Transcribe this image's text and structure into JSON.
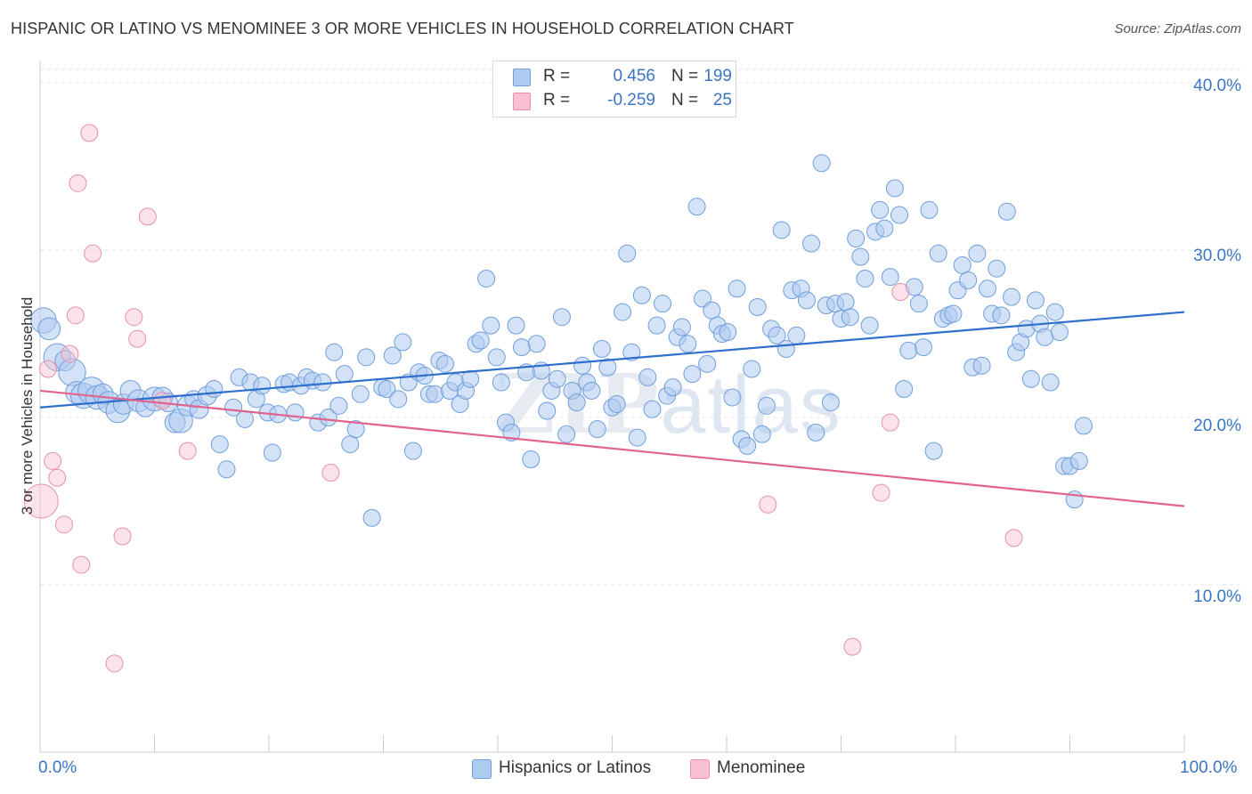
{
  "title": "HISPANIC OR LATINO VS MENOMINEE 3 OR MORE VEHICLES IN HOUSEHOLD CORRELATION CHART",
  "source": "Source: ZipAtlas.com",
  "watermark": {
    "zip": "ZIP",
    "atlas": "atlas"
  },
  "legend": {
    "rows": [
      {
        "r_label": "R =",
        "r_value": "0.456",
        "n_label": "N =",
        "n_value": "199",
        "color": "#aecbf0",
        "border": "#6f9fdc"
      },
      {
        "r_label": "R =",
        "r_value": "-0.259",
        "n_label": "N =",
        "n_value": "25",
        "color": "#f8c0d0",
        "border": "#e791ab"
      }
    ]
  },
  "bottom_legend": [
    {
      "label": "Hispanics or Latinos",
      "color": "#aecbf0",
      "border": "#6f9fdc"
    },
    {
      "label": "Menominee",
      "color": "#f8c0d0",
      "border": "#e791ab"
    }
  ],
  "axes": {
    "ylabel": "3 or more Vehicles in Household",
    "x_left_label": "0.0%",
    "x_right_label": "100.0%",
    "y_tick_labels": [
      "10.0%",
      "20.0%",
      "30.0%",
      "40.0%"
    ]
  },
  "chart_data": {
    "type": "scatter",
    "x_range": [
      0,
      100
    ],
    "y_range": [
      0,
      40.8
    ],
    "y_ticks": [
      10,
      20,
      30,
      40
    ],
    "grid": true,
    "legend_position": "top-center",
    "series": [
      {
        "name": "Hispanics or Latinos",
        "color": "#aecbf0",
        "stroke": "#6f9fdc",
        "line_color": "#2f6fcc",
        "trend": {
          "x": [
            0,
            100
          ],
          "y": [
            20.6,
            26.3
          ]
        },
        "points": [
          [
            0.3,
            25.8,
            1.5
          ],
          [
            0.8,
            25.3,
            1.3
          ],
          [
            1.5,
            23.6,
            1.6
          ],
          [
            2.2,
            23.4,
            1.2
          ],
          [
            2.8,
            22.7,
            1.6
          ],
          [
            3.2,
            21.5,
            1.3
          ],
          [
            3.8,
            21.3,
            1.5
          ],
          [
            4.5,
            21.6,
            1.6
          ],
          [
            5.0,
            21.2,
            1.4
          ],
          [
            5.5,
            21.4,
            1.2
          ],
          [
            6.0,
            20.9,
            1.3
          ],
          [
            6.8,
            20.4,
            1.4
          ],
          [
            7.3,
            20.8,
            1.2
          ],
          [
            7.9,
            21.6,
            1.2
          ],
          [
            8.6,
            21.0,
            1.3
          ],
          [
            9.2,
            20.6,
            1.1
          ],
          [
            10.0,
            21.1,
            1.4
          ],
          [
            10.7,
            21.2,
            1.2
          ],
          [
            11.2,
            20.9,
            1.1
          ],
          [
            11.8,
            19.7,
            1.2
          ],
          [
            12.3,
            19.8,
            1.4
          ],
          [
            12.9,
            20.7,
            1.2
          ],
          [
            13.4,
            21.1,
            1.0
          ],
          [
            13.9,
            20.5,
            1.1
          ],
          [
            14.6,
            21.3,
            1.1
          ],
          [
            15.2,
            21.7,
            1.0
          ],
          [
            15.7,
            18.4,
            1.0
          ],
          [
            16.3,
            16.9,
            1.0
          ],
          [
            16.9,
            20.6,
            1.0
          ],
          [
            17.4,
            22.4,
            1.0
          ],
          [
            17.9,
            19.9,
            1.0
          ],
          [
            18.4,
            22.1,
            1.0
          ],
          [
            18.9,
            21.1,
            1.0
          ],
          [
            19.4,
            21.9,
            1.0
          ],
          [
            19.9,
            20.3,
            1.0
          ],
          [
            20.3,
            17.9,
            1.0
          ],
          [
            20.8,
            20.2,
            1.0
          ],
          [
            21.3,
            22.0,
            1.0
          ],
          [
            21.8,
            22.1,
            1.0
          ],
          [
            22.3,
            20.3,
            1.0
          ],
          [
            22.8,
            21.9,
            1.0
          ],
          [
            23.3,
            22.4,
            1.0
          ],
          [
            23.8,
            22.2,
            1.0
          ],
          [
            24.3,
            19.7,
            1.0
          ],
          [
            24.7,
            22.1,
            1.0
          ],
          [
            25.2,
            20.0,
            1.0
          ],
          [
            25.7,
            23.9,
            1.0
          ],
          [
            26.1,
            20.7,
            1.0
          ],
          [
            26.6,
            22.6,
            1.0
          ],
          [
            27.1,
            18.4,
            1.0
          ],
          [
            27.6,
            19.3,
            1.0
          ],
          [
            28.0,
            21.4,
            1.0
          ],
          [
            28.5,
            23.6,
            1.0
          ],
          [
            29.0,
            14.0,
            1.0
          ],
          [
            29.9,
            21.8,
            1.0
          ],
          [
            30.3,
            21.7,
            1.0
          ],
          [
            30.8,
            23.7,
            1.0
          ],
          [
            31.3,
            21.1,
            1.0
          ],
          [
            31.7,
            24.5,
            1.0
          ],
          [
            32.2,
            22.1,
            1.0
          ],
          [
            32.6,
            18.0,
            1.0
          ],
          [
            33.1,
            22.7,
            1.0
          ],
          [
            33.6,
            22.5,
            1.0
          ],
          [
            34.0,
            21.4,
            1.0
          ],
          [
            34.5,
            21.4,
            1.0
          ],
          [
            34.9,
            23.4,
            1.0
          ],
          [
            35.4,
            23.2,
            1.0
          ],
          [
            35.8,
            21.6,
            1.0
          ],
          [
            36.3,
            22.1,
            1.0
          ],
          [
            36.7,
            20.8,
            1.0
          ],
          [
            37.2,
            21.6,
            1.0
          ],
          [
            37.6,
            22.3,
            1.0
          ],
          [
            38.1,
            24.4,
            1.0
          ],
          [
            38.5,
            24.6,
            1.0
          ],
          [
            39.0,
            28.3,
            1.0
          ],
          [
            39.4,
            25.5,
            1.0
          ],
          [
            39.9,
            23.6,
            1.0
          ],
          [
            40.3,
            22.1,
            1.0
          ],
          [
            40.7,
            19.7,
            1.0
          ],
          [
            41.2,
            19.1,
            1.0
          ],
          [
            41.6,
            25.5,
            1.0
          ],
          [
            42.1,
            24.2,
            1.0
          ],
          [
            42.5,
            22.7,
            1.0
          ],
          [
            42.9,
            17.5,
            1.0
          ],
          [
            43.4,
            24.4,
            1.0
          ],
          [
            43.8,
            22.8,
            1.0
          ],
          [
            44.3,
            20.4,
            1.0
          ],
          [
            44.7,
            21.6,
            1.0
          ],
          [
            45.2,
            22.3,
            1.0
          ],
          [
            45.6,
            26.0,
            1.0
          ],
          [
            46.0,
            19.0,
            1.0
          ],
          [
            46.5,
            21.6,
            1.0
          ],
          [
            46.9,
            20.9,
            1.0
          ],
          [
            47.4,
            23.1,
            1.0
          ],
          [
            47.8,
            22.1,
            1.0
          ],
          [
            48.2,
            21.6,
            1.0
          ],
          [
            48.7,
            19.3,
            1.0
          ],
          [
            49.1,
            24.1,
            1.0
          ],
          [
            49.6,
            23.0,
            1.0
          ],
          [
            50.0,
            20.6,
            1.0
          ],
          [
            50.4,
            20.8,
            1.0
          ],
          [
            50.9,
            26.3,
            1.0
          ],
          [
            51.3,
            29.8,
            1.0
          ],
          [
            51.7,
            23.9,
            1.0
          ],
          [
            52.2,
            18.8,
            1.0
          ],
          [
            52.6,
            27.3,
            1.0
          ],
          [
            53.1,
            22.4,
            1.0
          ],
          [
            53.5,
            20.5,
            1.0
          ],
          [
            53.9,
            25.5,
            1.0
          ],
          [
            54.4,
            26.8,
            1.0
          ],
          [
            54.8,
            21.3,
            1.0
          ],
          [
            55.3,
            21.8,
            1.0
          ],
          [
            55.7,
            24.8,
            1.0
          ],
          [
            56.1,
            25.4,
            1.0
          ],
          [
            56.6,
            24.4,
            1.0
          ],
          [
            57.0,
            22.6,
            1.0
          ],
          [
            57.4,
            32.6,
            1.0
          ],
          [
            57.9,
            27.1,
            1.0
          ],
          [
            58.3,
            23.2,
            1.0
          ],
          [
            58.7,
            26.4,
            1.0
          ],
          [
            59.2,
            25.5,
            1.0
          ],
          [
            59.6,
            25.0,
            1.0
          ],
          [
            60.1,
            25.1,
            1.0
          ],
          [
            60.5,
            21.2,
            1.0
          ],
          [
            60.9,
            27.7,
            1.0
          ],
          [
            61.3,
            18.7,
            1.0
          ],
          [
            61.8,
            18.3,
            1.0
          ],
          [
            62.2,
            22.9,
            1.0
          ],
          [
            62.7,
            26.6,
            1.0
          ],
          [
            63.1,
            19.0,
            1.0
          ],
          [
            63.5,
            20.7,
            1.0
          ],
          [
            63.9,
            25.3,
            1.0
          ],
          [
            64.4,
            24.9,
            1.0
          ],
          [
            64.8,
            31.2,
            1.0
          ],
          [
            65.2,
            24.1,
            1.0
          ],
          [
            65.7,
            27.6,
            1.0
          ],
          [
            66.1,
            24.9,
            1.0
          ],
          [
            66.5,
            27.7,
            1.0
          ],
          [
            67.0,
            27.0,
            1.0
          ],
          [
            67.4,
            30.4,
            1.0
          ],
          [
            67.8,
            19.1,
            1.0
          ],
          [
            68.3,
            35.2,
            1.0
          ],
          [
            68.7,
            26.7,
            1.0
          ],
          [
            69.1,
            20.9,
            1.0
          ],
          [
            69.5,
            26.8,
            1.0
          ],
          [
            70.0,
            25.9,
            1.0
          ],
          [
            70.4,
            26.9,
            1.0
          ],
          [
            70.8,
            26.0,
            1.0
          ],
          [
            71.3,
            30.7,
            1.0
          ],
          [
            71.7,
            29.6,
            1.0
          ],
          [
            72.1,
            28.3,
            1.0
          ],
          [
            72.5,
            25.5,
            1.0
          ],
          [
            73.0,
            31.1,
            1.0
          ],
          [
            73.4,
            32.4,
            1.0
          ],
          [
            73.8,
            31.3,
            1.0
          ],
          [
            74.3,
            28.4,
            1.0
          ],
          [
            74.7,
            33.7,
            1.0
          ],
          [
            75.1,
            32.1,
            1.0
          ],
          [
            75.5,
            21.7,
            1.0
          ],
          [
            75.9,
            24.0,
            1.0
          ],
          [
            76.4,
            27.8,
            1.0
          ],
          [
            76.8,
            26.8,
            1.0
          ],
          [
            77.2,
            24.2,
            1.0
          ],
          [
            77.7,
            32.4,
            1.0
          ],
          [
            78.1,
            18.0,
            1.0
          ],
          [
            78.5,
            29.8,
            1.0
          ],
          [
            78.9,
            25.9,
            1.0
          ],
          [
            79.4,
            26.1,
            1.0
          ],
          [
            79.8,
            26.2,
            1.0
          ],
          [
            80.2,
            27.6,
            1.0
          ],
          [
            80.6,
            29.1,
            1.0
          ],
          [
            81.1,
            28.2,
            1.0
          ],
          [
            81.5,
            23.0,
            1.0
          ],
          [
            81.9,
            29.8,
            1.0
          ],
          [
            82.3,
            23.1,
            1.0
          ],
          [
            82.8,
            27.7,
            1.0
          ],
          [
            83.2,
            26.2,
            1.0
          ],
          [
            83.6,
            28.9,
            1.0
          ],
          [
            84.0,
            26.1,
            1.0
          ],
          [
            84.5,
            32.3,
            1.0
          ],
          [
            84.9,
            27.2,
            1.0
          ],
          [
            85.3,
            23.9,
            1.0
          ],
          [
            85.7,
            24.5,
            1.0
          ],
          [
            86.2,
            25.3,
            1.0
          ],
          [
            86.6,
            22.3,
            1.0
          ],
          [
            87.0,
            27.0,
            1.0
          ],
          [
            87.4,
            25.6,
            1.0
          ],
          [
            87.8,
            24.8,
            1.0
          ],
          [
            88.3,
            22.1,
            1.0
          ],
          [
            88.7,
            26.3,
            1.0
          ],
          [
            89.1,
            25.1,
            1.0
          ],
          [
            89.5,
            17.1,
            1.0
          ],
          [
            90.0,
            17.1,
            1.0
          ],
          [
            90.4,
            15.1,
            1.0
          ],
          [
            90.8,
            17.4,
            1.0
          ],
          [
            91.2,
            19.5,
            1.0
          ]
        ]
      },
      {
        "name": "Menominee",
        "color": "#f8c0d0",
        "stroke": "#e791ab",
        "line_color": "#e0648f",
        "trend": {
          "x": [
            0,
            100
          ],
          "y": [
            21.6,
            14.7
          ]
        },
        "points": [
          [
            0.1,
            15.0,
            2.0
          ],
          [
            0.7,
            22.9,
            1.0
          ],
          [
            1.1,
            17.4,
            1.0
          ],
          [
            1.5,
            16.4,
            1.0
          ],
          [
            2.1,
            13.6,
            1.0
          ],
          [
            2.6,
            23.8,
            1.0
          ],
          [
            3.1,
            26.1,
            1.0
          ],
          [
            3.3,
            34.0,
            1.0
          ],
          [
            3.6,
            11.2,
            1.0
          ],
          [
            4.3,
            37.0,
            1.0
          ],
          [
            4.6,
            29.8,
            1.0
          ],
          [
            6.5,
            5.3,
            1.0
          ],
          [
            7.2,
            12.9,
            1.0
          ],
          [
            8.2,
            26.0,
            1.0
          ],
          [
            8.5,
            24.7,
            1.0
          ],
          [
            9.4,
            32.0,
            1.0
          ],
          [
            10.7,
            21.0,
            1.0
          ],
          [
            12.9,
            18.0,
            1.0
          ],
          [
            25.4,
            16.7,
            1.0
          ],
          [
            63.6,
            14.8,
            1.0
          ],
          [
            71.0,
            6.3,
            1.0
          ],
          [
            73.5,
            15.5,
            1.0
          ],
          [
            74.3,
            19.7,
            1.0
          ],
          [
            75.2,
            27.5,
            1.0
          ],
          [
            85.1,
            12.8,
            1.0
          ]
        ]
      }
    ]
  }
}
